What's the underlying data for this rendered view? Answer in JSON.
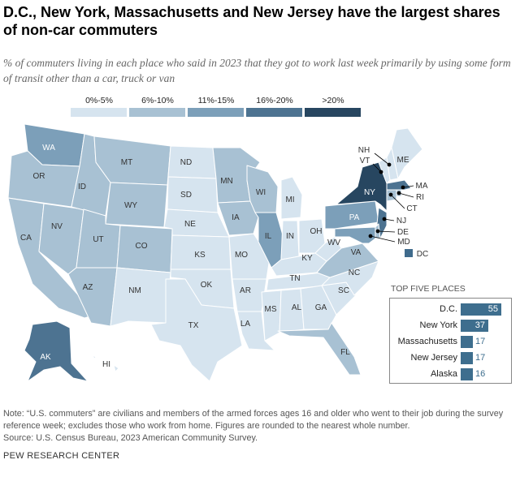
{
  "title": "D.C., New York, Massachusetts and New Jersey have the largest shares of non-car commuters",
  "subtitle": "% of commuters living in each place who said in 2023 that they got to work last week primarily by using some form of transit other than a car, truck or van",
  "legend": [
    {
      "label": "0%-5%",
      "color": "#d6e4ef"
    },
    {
      "label": "6%-10%",
      "color": "#a8c1d3"
    },
    {
      "label": "11%-15%",
      "color": "#7c9fb9"
    },
    {
      "label": "16%-20%",
      "color": "#4d7391"
    },
    {
      "label": ">20%",
      "color": "#274660"
    }
  ],
  "states": {
    "WA": "WA",
    "OR": "OR",
    "CA": "CA",
    "NV": "NV",
    "ID": "ID",
    "MT": "MT",
    "WY": "WY",
    "UT": "UT",
    "AZ": "AZ",
    "CO": "CO",
    "NM": "NM",
    "ND": "ND",
    "SD": "SD",
    "NE": "NE",
    "KS": "KS",
    "OK": "OK",
    "TX": "TX",
    "MN": "MN",
    "IA": "IA",
    "MO": "MO",
    "AR": "AR",
    "LA": "LA",
    "WI": "WI",
    "IL": "IL",
    "MI": "MI",
    "IN": "IN",
    "OH": "OH",
    "KY": "KY",
    "TN": "TN",
    "MS": "MS",
    "AL": "AL",
    "GA": "GA",
    "FL": "FL",
    "SC": "SC",
    "NC": "NC",
    "VA": "VA",
    "WV": "WV",
    "PA": "PA",
    "NY": "NY",
    "ME": "ME",
    "AK": "AK",
    "HI": "HI",
    "NH": "NH",
    "VT": "VT",
    "MA": "MA",
    "RI": "RI",
    "CT": "CT",
    "NJ": "NJ",
    "DE": "DE",
    "MD": "MD",
    "DC": "DC"
  },
  "top_five": {
    "header": "TOP FIVE PLACES",
    "rows": [
      {
        "name": "D.C.",
        "value": 55
      },
      {
        "name": "New York",
        "value": 37
      },
      {
        "name": "Massachusetts",
        "value": 17
      },
      {
        "name": "New Jersey",
        "value": 17
      },
      {
        "name": "Alaska",
        "value": 16
      }
    ]
  },
  "note": "Note: “U.S. commuters” are civilians and members of the armed forces ages 16 and older who went to their job during the survey reference week; excludes those who work from home. Figures are rounded to the nearest whole number.",
  "source": "Source: U.S. Census Bureau, 2023 American Community Survey.",
  "credit": "PEW RESEARCH CENTER"
}
